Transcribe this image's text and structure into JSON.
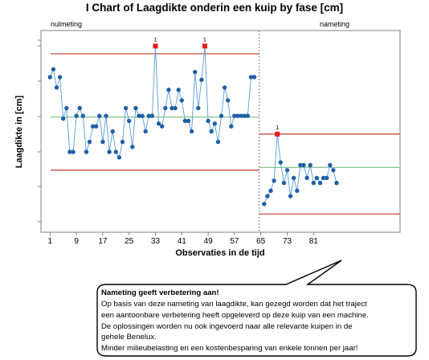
{
  "chart_data": {
    "type": "line",
    "title": "I Chart of Laagdikte onderin een kuip by fase [cm]",
    "xlabel": "Observaties in de tijd",
    "ylabel": "Laagdikte in [cm]",
    "x_ticks": [
      "1",
      "9",
      "17",
      "25",
      "33",
      "41",
      "49",
      "57",
      "65",
      "73",
      "81"
    ],
    "phases": [
      {
        "name": "nulmeting",
        "x_start": 1,
        "values": [
          50.0,
          52.0,
          47.3,
          50.0,
          39.3,
          42.0,
          30.7,
          30.7,
          40.0,
          42.0,
          40.0,
          30.7,
          33.3,
          37.3,
          37.3,
          40.0,
          33.3,
          40.0,
          30.7,
          36.0,
          30.7,
          29.3,
          33.3,
          42.0,
          38.7,
          32.0,
          42.0,
          40.0,
          40.0,
          36.0,
          40.0,
          40.0,
          58.0,
          38.0,
          37.3,
          42.0,
          46.7,
          42.0,
          42.0,
          46.7,
          44.0,
          38.7,
          38.7,
          36.0,
          51.3,
          42.0,
          49.3,
          58.0,
          38.7,
          36.0,
          38.0,
          33.3,
          40.0,
          47.3,
          44.0,
          37.3,
          40.0,
          40.0,
          40.0,
          40.0,
          40.0,
          50.0,
          50.0
        ],
        "ucl": 56.0,
        "center": 39.7,
        "lcl": 26.0,
        "flagged": [
          {
            "x": 33,
            "label": "1"
          },
          {
            "x": 48,
            "label": "1"
          }
        ]
      },
      {
        "name": "nameting",
        "x_start": 66,
        "values": [
          17.3,
          19.3,
          20.7,
          23.3,
          35.3,
          28.0,
          22.7,
          26.0,
          19.3,
          24.0,
          20.7,
          27.3,
          27.3,
          24.0,
          27.3,
          22.7,
          24.0,
          22.7,
          24.0,
          24.0,
          27.3,
          26.0,
          22.7
        ],
        "ucl": 35.3,
        "center": 26.7,
        "lcl": 14.7,
        "flagged": [
          {
            "x": 70,
            "label": "1"
          }
        ]
      }
    ],
    "ylim": [
      10,
      62
    ],
    "colors": {
      "points": "#1f5fa8",
      "line": "#5b9bd5",
      "center": "#84c98c",
      "limits": "#c0392b",
      "flagged": "#e8191f"
    }
  },
  "callout": {
    "title": "Nameting geeft verbetering aan!",
    "lines": [
      "Op basis van deze nameting van laagdikte, kan gezegd worden dat het traject",
      "een aantoonbare verbetering  heeft opgeleverd op deze kuip van een machine.",
      "De oplossingen  worden  nu ook ingevoerd naar alle relevante kuipen in de",
      "gehele Benelux.",
      "Minder milieubelasting  en een kostenbesparing van enkele tonnen  per jaar!"
    ]
  }
}
